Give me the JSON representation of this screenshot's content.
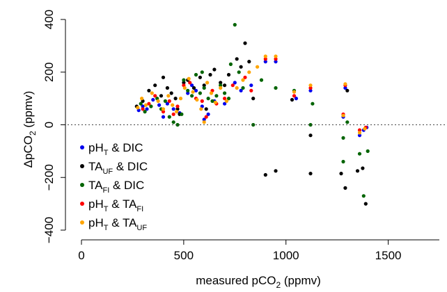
{
  "chart_data": {
    "type": "scatter",
    "xlabel": "measured pCO",
    "xlabel_sub": "2",
    "xlabel_unit": " (ppmv)",
    "ylabel_prefix": "ΔpCO",
    "ylabel_sub": "2",
    "ylabel_unit": " (ppmv)",
    "xlim": [
      0,
      1750
    ],
    "ylim": [
      -400,
      400
    ],
    "x_ticks": [
      0,
      500,
      1000,
      1500
    ],
    "y_ticks": [
      -400,
      -200,
      0,
      200,
      400
    ],
    "x_tick_labels": [
      "0",
      "500",
      "1000",
      "1500"
    ],
    "y_tick_labels": [
      "−400",
      "−200",
      "0",
      "200",
      "400"
    ],
    "reference_line": {
      "y": 0,
      "style": "dotted"
    },
    "legend_position": "bottom-left",
    "series": [
      {
        "label_a": "pH",
        "label_a_sub": "T",
        "label_b": " & DIC",
        "label_b_sub": "",
        "color": "#0000ee",
        "points": [
          [
            280,
            55
          ],
          [
            300,
            70
          ],
          [
            320,
            60
          ],
          [
            350,
            95
          ],
          [
            380,
            75
          ],
          [
            400,
            30
          ],
          [
            420,
            80
          ],
          [
            450,
            60
          ],
          [
            480,
            45
          ],
          [
            520,
            120
          ],
          [
            540,
            150
          ],
          [
            560,
            130
          ],
          [
            590,
            70
          ],
          [
            600,
            20
          ],
          [
            620,
            40
          ],
          [
            650,
            90
          ],
          [
            700,
            80
          ],
          [
            750,
            160
          ],
          [
            780,
            130
          ],
          [
            830,
            150
          ],
          [
            900,
            240
          ],
          [
            950,
            240
          ],
          [
            1050,
            100
          ],
          [
            1120,
            130
          ],
          [
            1280,
            30
          ],
          [
            1290,
            140
          ],
          [
            1360,
            -40
          ],
          [
            1380,
            -20
          ],
          [
            1395,
            -10
          ]
        ]
      },
      {
        "label_a": "TA",
        "label_a_sub": "UF",
        "label_b": " & DIC",
        "label_b_sub": "",
        "color": "#000000",
        "points": [
          [
            270,
            70
          ],
          [
            300,
            90
          ],
          [
            330,
            130
          ],
          [
            360,
            150
          ],
          [
            390,
            110
          ],
          [
            400,
            180
          ],
          [
            420,
            140
          ],
          [
            440,
            120
          ],
          [
            460,
            100
          ],
          [
            470,
            60
          ],
          [
            480,
            40
          ],
          [
            500,
            160
          ],
          [
            520,
            170
          ],
          [
            550,
            140
          ],
          [
            580,
            180
          ],
          [
            600,
            150
          ],
          [
            610,
            60
          ],
          [
            630,
            190
          ],
          [
            650,
            210
          ],
          [
            680,
            160
          ],
          [
            700,
            150
          ],
          [
            720,
            190
          ],
          [
            760,
            250
          ],
          [
            780,
            220
          ],
          [
            800,
            310
          ],
          [
            820,
            240
          ],
          [
            840,
            100
          ],
          [
            900,
            -190
          ],
          [
            950,
            -175
          ],
          [
            1030,
            95
          ],
          [
            1120,
            -40
          ],
          [
            1120,
            -185
          ],
          [
            1270,
            -185
          ],
          [
            1290,
            -240
          ],
          [
            1300,
            130
          ],
          [
            1350,
            -175
          ],
          [
            1375,
            -165
          ],
          [
            1390,
            -300
          ]
        ]
      },
      {
        "label_a": "TA",
        "label_a_sub": "FI",
        "label_b": " & DIC",
        "label_b_sub": "",
        "color": "#006400",
        "points": [
          [
            290,
            80
          ],
          [
            310,
            50
          ],
          [
            340,
            70
          ],
          [
            370,
            100
          ],
          [
            390,
            60
          ],
          [
            410,
            90
          ],
          [
            430,
            30
          ],
          [
            450,
            10
          ],
          [
            470,
            0
          ],
          [
            490,
            40
          ],
          [
            500,
            170
          ],
          [
            520,
            130
          ],
          [
            540,
            110
          ],
          [
            560,
            190
          ],
          [
            580,
            120
          ],
          [
            590,
            200
          ],
          [
            600,
            140
          ],
          [
            620,
            100
          ],
          [
            640,
            90
          ],
          [
            660,
            110
          ],
          [
            680,
            150
          ],
          [
            700,
            120
          ],
          [
            720,
            100
          ],
          [
            730,
            230
          ],
          [
            750,
            380
          ],
          [
            770,
            200
          ],
          [
            790,
            140
          ],
          [
            840,
            0
          ],
          [
            880,
            170
          ],
          [
            950,
            140
          ],
          [
            1040,
            130
          ],
          [
            1120,
            0
          ],
          [
            1130,
            80
          ],
          [
            1280,
            -140
          ],
          [
            1280,
            -50
          ],
          [
            1300,
            10
          ],
          [
            1360,
            -110
          ],
          [
            1380,
            -270
          ],
          [
            1400,
            -100
          ]
        ]
      },
      {
        "label_a": "pH",
        "label_a_sub": "T",
        "label_b": " & TA",
        "label_b_sub": "FI",
        "color": "#ff0000",
        "points": [
          [
            300,
            60
          ],
          [
            330,
            80
          ],
          [
            360,
            110
          ],
          [
            400,
            50
          ],
          [
            430,
            90
          ],
          [
            450,
            40
          ],
          [
            470,
            70
          ],
          [
            500,
            150
          ],
          [
            530,
            160
          ],
          [
            560,
            100
          ],
          [
            590,
            90
          ],
          [
            610,
            30
          ],
          [
            640,
            130
          ],
          [
            660,
            80
          ],
          [
            700,
            100
          ],
          [
            740,
            150
          ],
          [
            800,
            180
          ],
          [
            830,
            130
          ],
          [
            900,
            250
          ],
          [
            950,
            250
          ],
          [
            1040,
            110
          ],
          [
            1120,
            140
          ],
          [
            1280,
            40
          ],
          [
            1290,
            150
          ],
          [
            1360,
            -20
          ],
          [
            1390,
            -10
          ]
        ]
      },
      {
        "label_a": "pH",
        "label_a_sub": "T",
        "label_b": " & TA",
        "label_b_sub": "UF",
        "color": "#ffa500",
        "points": [
          [
            275,
            65
          ],
          [
            295,
            100
          ],
          [
            315,
            75
          ],
          [
            345,
            120
          ],
          [
            375,
            90
          ],
          [
            400,
            60
          ],
          [
            425,
            110
          ],
          [
            445,
            75
          ],
          [
            465,
            50
          ],
          [
            485,
            100
          ],
          [
            505,
            140
          ],
          [
            525,
            175
          ],
          [
            545,
            125
          ],
          [
            565,
            95
          ],
          [
            585,
            60
          ],
          [
            600,
            10
          ],
          [
            615,
            160
          ],
          [
            635,
            120
          ],
          [
            655,
            85
          ],
          [
            680,
            140
          ],
          [
            710,
            90
          ],
          [
            760,
            140
          ],
          [
            790,
            170
          ],
          [
            820,
            200
          ],
          [
            860,
            220
          ],
          [
            900,
            260
          ],
          [
            950,
            260
          ],
          [
            1040,
            125
          ],
          [
            1120,
            150
          ],
          [
            1280,
            35
          ],
          [
            1290,
            155
          ],
          [
            1360,
            -30
          ],
          [
            1385,
            -15
          ]
        ]
      }
    ]
  }
}
